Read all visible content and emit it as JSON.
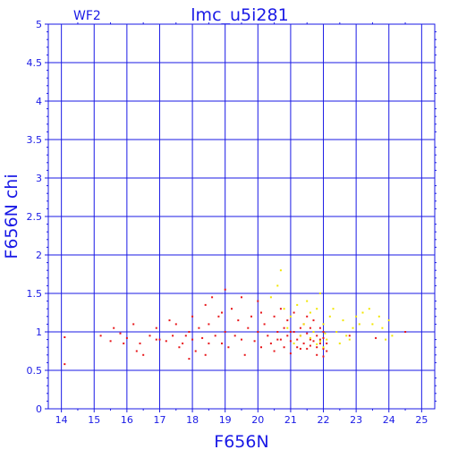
{
  "chart_data": {
    "type": "scatter",
    "title": "lmc_u5i281",
    "panel_tag": "WF2",
    "xlabel": "F656N",
    "ylabel": "F656N chi",
    "xlim": [
      13.6,
      25.4
    ],
    "ylim": [
      0,
      5
    ],
    "xticks": [
      14,
      15,
      16,
      17,
      18,
      19,
      20,
      21,
      22,
      23,
      24,
      25
    ],
    "yticks": [
      0,
      0.5,
      1,
      1.5,
      2,
      2.5,
      3,
      3.5,
      4,
      4.5,
      5
    ],
    "ytick_labels": [
      "0",
      "0.5",
      "1",
      "1.5",
      "2",
      "2.5",
      "3",
      "3.5",
      "4",
      "4.5",
      "5"
    ],
    "grid": true,
    "colors": {
      "axis": "#1a1ae6",
      "red_series": "#e8161a",
      "yellow_series": "#f2e600",
      "background": "#ffffff"
    },
    "series": [
      {
        "color": "red",
        "points": [
          [
            14.1,
            0.93
          ],
          [
            14.1,
            0.58
          ],
          [
            15.2,
            0.95
          ],
          [
            15.5,
            0.88
          ],
          [
            15.6,
            1.05
          ],
          [
            15.8,
            0.98
          ],
          [
            16.0,
            0.92
          ],
          [
            16.2,
            1.1
          ],
          [
            16.3,
            0.75
          ],
          [
            16.4,
            0.85
          ],
          [
            16.5,
            0.7
          ],
          [
            16.7,
            0.95
          ],
          [
            16.9,
            1.05
          ],
          [
            17.0,
            0.9
          ],
          [
            17.2,
            0.88
          ],
          [
            17.3,
            1.15
          ],
          [
            17.4,
            0.95
          ],
          [
            17.5,
            1.1
          ],
          [
            17.6,
            0.8
          ],
          [
            17.7,
            0.85
          ],
          [
            17.8,
            0.95
          ],
          [
            17.9,
            0.65
          ],
          [
            18.0,
            1.2
          ],
          [
            18.0,
            0.9
          ],
          [
            18.1,
            0.75
          ],
          [
            18.2,
            1.05
          ],
          [
            18.3,
            0.92
          ],
          [
            18.4,
            1.35
          ],
          [
            18.5,
            0.85
          ],
          [
            18.5,
            1.1
          ],
          [
            18.6,
            1.45
          ],
          [
            18.7,
            0.95
          ],
          [
            18.8,
            1.2
          ],
          [
            18.9,
            0.85
          ],
          [
            19.0,
            1.55
          ],
          [
            19.0,
            1.0
          ],
          [
            19.1,
            0.8
          ],
          [
            19.2,
            1.3
          ],
          [
            19.3,
            0.95
          ],
          [
            19.4,
            1.15
          ],
          [
            19.5,
            0.9
          ],
          [
            19.6,
            0.7
          ],
          [
            19.7,
            1.05
          ],
          [
            19.8,
            1.2
          ],
          [
            19.9,
            0.88
          ],
          [
            20.0,
            1.0
          ],
          [
            20.0,
            1.4
          ],
          [
            20.1,
            0.8
          ],
          [
            20.2,
            1.1
          ],
          [
            20.3,
            0.95
          ],
          [
            20.4,
            0.85
          ],
          [
            20.5,
            1.2
          ],
          [
            20.5,
            0.75
          ],
          [
            20.6,
            1.0
          ],
          [
            20.7,
            0.9
          ],
          [
            20.7,
            1.3
          ],
          [
            20.8,
            1.05
          ],
          [
            20.8,
            0.8
          ],
          [
            20.9,
            0.95
          ],
          [
            20.9,
            1.15
          ],
          [
            21.0,
            0.88
          ],
          [
            21.0,
            0.72
          ],
          [
            21.1,
            1.0
          ],
          [
            21.1,
            1.25
          ],
          [
            21.2,
            0.9
          ],
          [
            21.2,
            0.8
          ],
          [
            21.3,
            1.05
          ],
          [
            21.3,
            0.95
          ],
          [
            21.4,
            0.85
          ],
          [
            21.4,
            1.1
          ],
          [
            21.5,
            0.78
          ],
          [
            21.5,
            0.98
          ],
          [
            21.5,
            1.2
          ],
          [
            21.6,
            0.9
          ],
          [
            21.6,
            0.82
          ],
          [
            21.7,
            1.0
          ],
          [
            21.7,
            0.88
          ],
          [
            21.7,
            1.15
          ],
          [
            21.8,
            0.8
          ],
          [
            21.8,
            0.95
          ],
          [
            21.8,
            0.7
          ],
          [
            21.9,
            0.9
          ],
          [
            21.9,
            0.85
          ],
          [
            21.9,
            1.05
          ],
          [
            22.0,
            0.78
          ],
          [
            22.0,
            0.92
          ],
          [
            22.0,
            0.68
          ],
          [
            22.1,
            0.85
          ],
          [
            22.1,
            0.75
          ],
          [
            20.1,
            1.25
          ],
          [
            20.6,
            0.9
          ],
          [
            21.0,
            1.0
          ],
          [
            21.3,
            0.78
          ],
          [
            21.6,
            1.05
          ],
          [
            22.0,
            1.0
          ],
          [
            19.5,
            1.45
          ],
          [
            18.9,
            1.25
          ],
          [
            17.9,
            1.0
          ],
          [
            16.9,
            0.9
          ],
          [
            22.8,
            0.95
          ],
          [
            23.6,
            0.92
          ],
          [
            24.5,
            1.0
          ],
          [
            15.9,
            0.85
          ],
          [
            18.4,
            0.7
          ]
        ]
      },
      {
        "color": "yellow",
        "points": [
          [
            20.4,
            1.45
          ],
          [
            20.6,
            1.6
          ],
          [
            20.8,
            1.3
          ],
          [
            20.7,
            1.8
          ],
          [
            21.0,
            1.2
          ],
          [
            21.2,
            1.35
          ],
          [
            21.4,
            1.1
          ],
          [
            21.5,
            1.4
          ],
          [
            21.6,
            1.25
          ],
          [
            21.7,
            1.0
          ],
          [
            21.8,
            1.3
          ],
          [
            21.9,
            1.5
          ],
          [
            22.0,
            1.1
          ],
          [
            22.1,
            0.9
          ],
          [
            22.2,
            1.2
          ],
          [
            22.4,
            1.0
          ],
          [
            22.6,
            1.15
          ],
          [
            22.8,
            0.9
          ],
          [
            22.9,
            1.05
          ],
          [
            23.0,
            1.2
          ],
          [
            23.2,
            1.25
          ],
          [
            23.4,
            1.3
          ],
          [
            23.5,
            1.1
          ],
          [
            23.7,
            1.2
          ],
          [
            23.8,
            1.05
          ],
          [
            24.0,
            1.15
          ],
          [
            24.1,
            0.95
          ],
          [
            22.5,
            0.85
          ],
          [
            21.3,
            0.95
          ],
          [
            21.9,
            0.88
          ],
          [
            22.0,
            0.8
          ],
          [
            21.6,
            0.92
          ],
          [
            21.8,
            0.84
          ],
          [
            22.3,
            1.3
          ],
          [
            23.1,
            1.1
          ],
          [
            20.9,
            1.05
          ],
          [
            22.7,
            0.95
          ],
          [
            23.9,
            0.9
          ],
          [
            21.1,
            0.85
          ],
          [
            22.05,
            0.98
          ]
        ]
      }
    ]
  }
}
